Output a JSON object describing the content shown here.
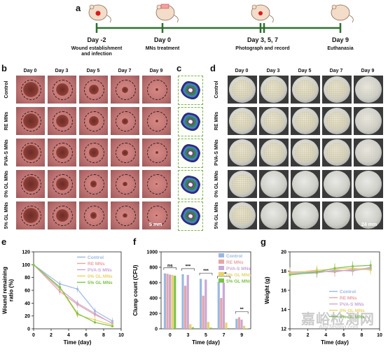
{
  "panel_letters": [
    "a",
    "b",
    "c",
    "d",
    "e",
    "f",
    "g"
  ],
  "timeline": {
    "points": [
      {
        "day": "Day -2",
        "caption": "Wound establishment\nand infection"
      },
      {
        "day": "Day 0",
        "caption": "MNs treatment"
      },
      {
        "day": "Day 3, 5, 7",
        "caption": "Photograph and record"
      },
      {
        "day": "Day 9",
        "caption": "Euthanasia"
      }
    ]
  },
  "groups": [
    "Control",
    "RE MNs",
    "PVA-S MNs",
    "0% GL MNs",
    "5% GL MNs"
  ],
  "days": [
    "Day 0",
    "Day 3",
    "Day 5",
    "Day 7",
    "Day 9"
  ],
  "scale_bars": {
    "wound": "5 mm",
    "plate": "24 mm"
  },
  "watermark": {
    "text": "嘉峪检测网",
    "url": "AnyTesting.com"
  },
  "colors": {
    "Control": "#9ab8e2",
    "RE MNs": "#e8a4a4",
    "PVA-S MNs": "#c8a8d8",
    "0% GL MNs": "#e8d26a",
    "5% GL MNs": "#7cc24a"
  },
  "chart_data": [
    {
      "id": "e",
      "type": "line",
      "title": "",
      "xlabel": "Time (day)",
      "ylabel": "Wound remaining\nratio (%)",
      "xlim": [
        0,
        10
      ],
      "ylim": [
        0,
        120
      ],
      "xticks": [
        0,
        2,
        4,
        6,
        8,
        10
      ],
      "yticks": [
        0,
        20,
        40,
        60,
        80,
        100,
        120
      ],
      "x": [
        0,
        3,
        5,
        7,
        9
      ],
      "series": [
        {
          "name": "Control",
          "values": [
            100,
            70,
            62,
            28,
            12
          ]
        },
        {
          "name": "RE MNs",
          "values": [
            100,
            58,
            38,
            22,
            9
          ]
        },
        {
          "name": "PVA-S MNs",
          "values": [
            100,
            62,
            40,
            24,
            8
          ]
        },
        {
          "name": "0% GL MNs",
          "values": [
            100,
            64,
            22,
            14,
            6
          ]
        },
        {
          "name": "5% GL MNs",
          "values": [
            100,
            65,
            24,
            10,
            4
          ]
        }
      ],
      "legend": "top-right"
    },
    {
      "id": "f",
      "type": "bar",
      "title": "",
      "xlabel": "Time (day)",
      "ylabel": "Clump count (CFU)",
      "ylim": [
        0,
        1000
      ],
      "yticks": [
        0,
        200,
        400,
        600,
        800,
        1000
      ],
      "categories": [
        "0",
        "3",
        "5",
        "7",
        "9"
      ],
      "series": [
        {
          "name": "Control",
          "values": [
            720,
            710,
            650,
            610,
            130
          ]
        },
        {
          "name": "RE MNs",
          "values": [
            715,
            560,
            430,
            400,
            150
          ]
        },
        {
          "name": "PVA-S MNs",
          "values": [
            705,
            700,
            640,
            600,
            120
          ]
        },
        {
          "name": "0% GL MNs",
          "values": [
            700,
            60,
            90,
            80,
            40
          ]
        },
        {
          "name": "5% GL MNs",
          "values": [
            690,
            20,
            15,
            10,
            5
          ]
        }
      ],
      "annotations": [
        "ns",
        "***",
        "***",
        "***",
        "**"
      ],
      "legend": "top-right"
    },
    {
      "id": "g",
      "type": "line",
      "title": "",
      "xlabel": "Time (day)",
      "ylabel": "Weight (g)",
      "xlim": [
        0,
        10
      ],
      "ylim": [
        12,
        20
      ],
      "xticks": [
        0,
        2,
        4,
        6,
        8,
        10
      ],
      "yticks": [
        12,
        14,
        16,
        18,
        20
      ],
      "x": [
        0,
        3,
        5,
        7,
        9
      ],
      "series": [
        {
          "name": "Control",
          "values": [
            17.8,
            17.9,
            18.0,
            18.1,
            18.2
          ]
        },
        {
          "name": "RE MNs",
          "values": [
            17.9,
            18.0,
            17.9,
            18.2,
            18.3
          ]
        },
        {
          "name": "PVA-S MNs",
          "values": [
            17.7,
            17.8,
            18.1,
            18.0,
            18.4
          ]
        },
        {
          "name": "0% GL MNs",
          "values": [
            17.8,
            18.1,
            18.2,
            18.3,
            18.1
          ]
        },
        {
          "name": "5% GL MNs",
          "values": [
            17.6,
            17.9,
            18.3,
            18.5,
            18.6
          ]
        }
      ],
      "legend": "bottom-right"
    }
  ]
}
